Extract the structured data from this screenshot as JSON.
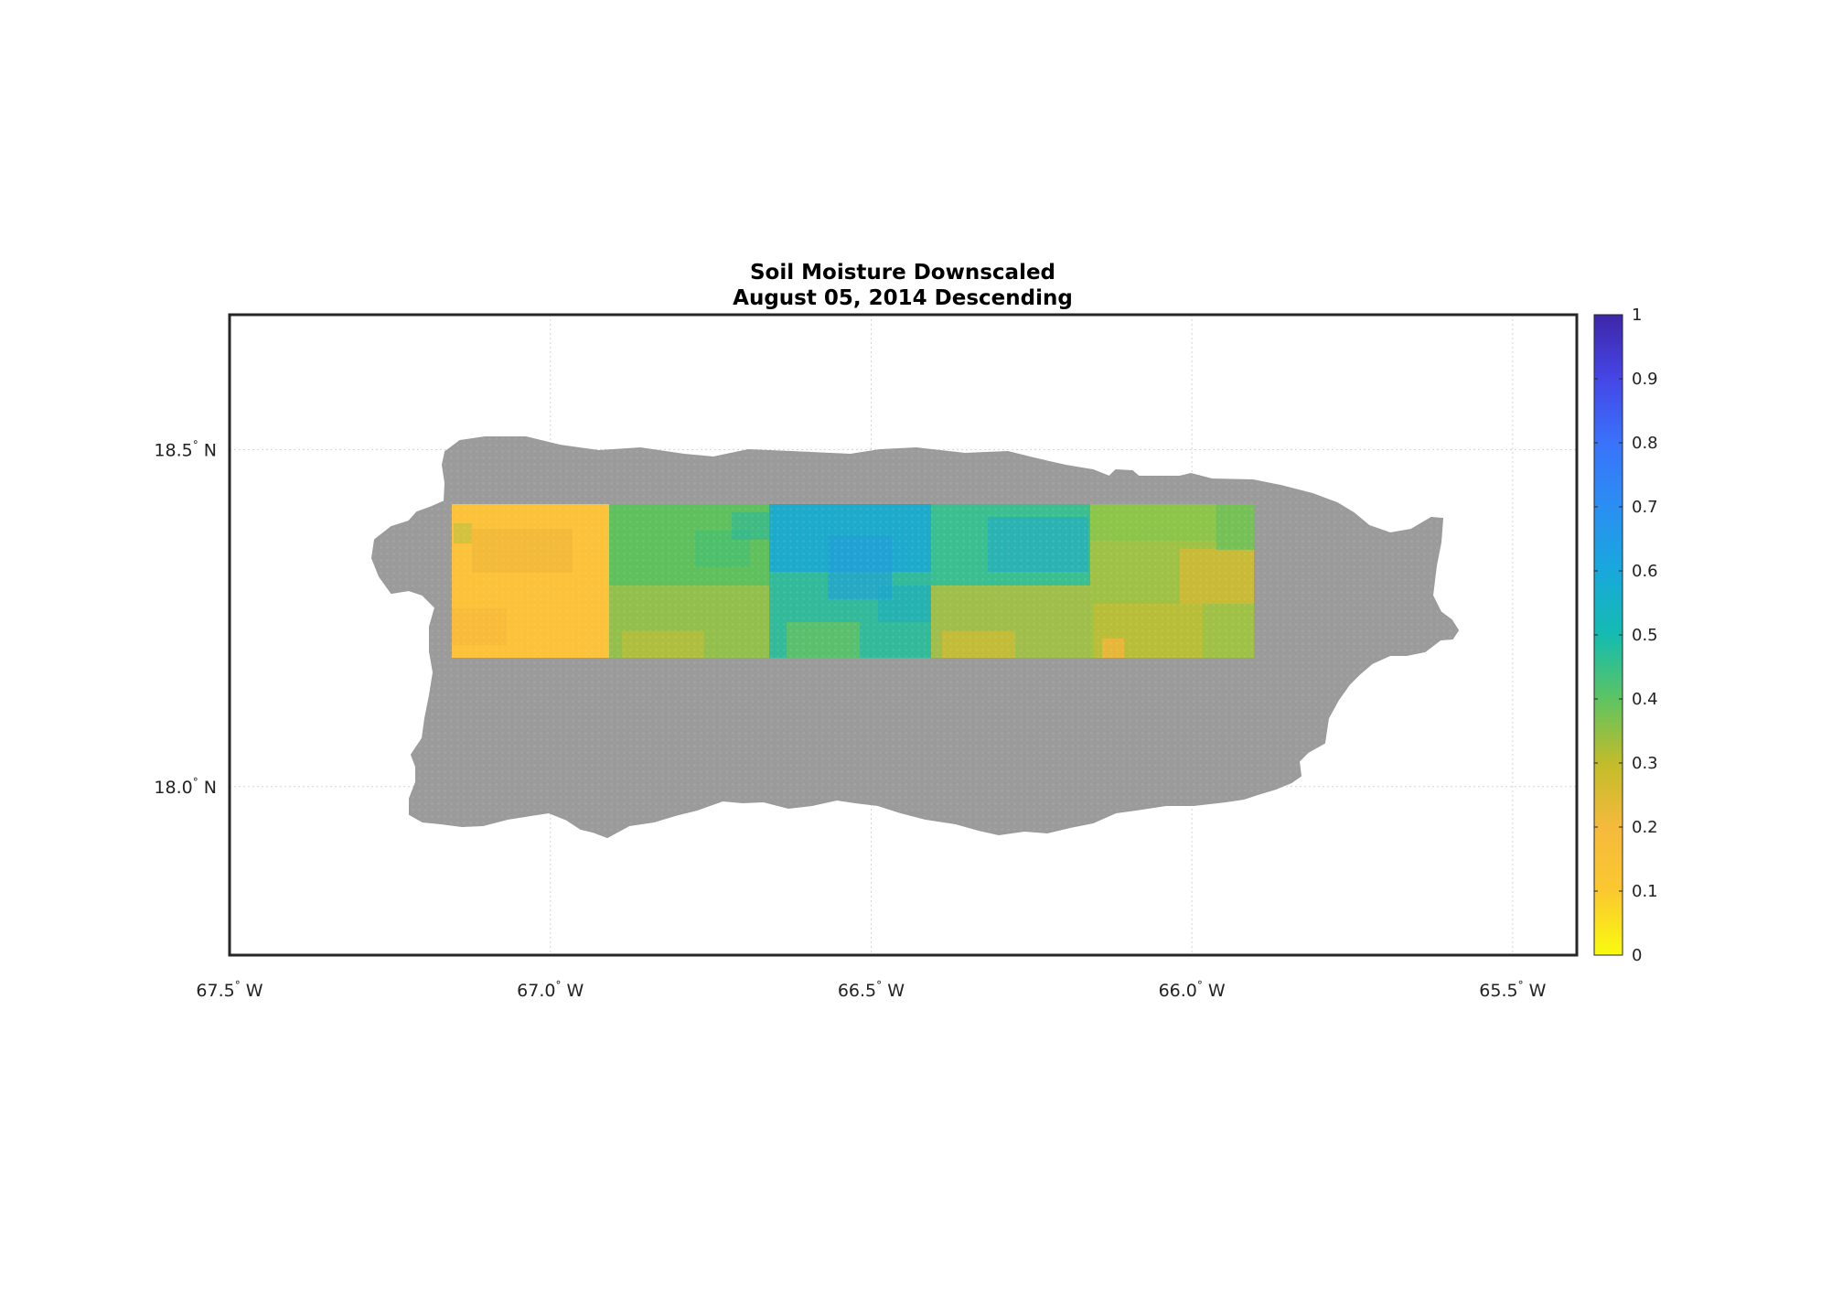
{
  "title": {
    "line1": "Soil Moisture Downscaled",
    "line2": "August 05, 2014 Descending"
  },
  "map": {
    "x_ticks": [
      {
        "value": -67.5,
        "label": "67.5",
        "suffix": " W"
      },
      {
        "value": -67.0,
        "label": "67.0",
        "suffix": " W"
      },
      {
        "value": -66.5,
        "label": "66.5",
        "suffix": " W"
      },
      {
        "value": -66.0,
        "label": "66.0",
        "suffix": " W"
      },
      {
        "value": -65.5,
        "label": "65.5",
        "suffix": " W"
      }
    ],
    "y_ticks": [
      {
        "value": 18.5,
        "label": "18.5",
        "suffix": " N"
      },
      {
        "value": 18.0,
        "label": "18.0",
        "suffix": " N"
      }
    ],
    "lon_range": [
      -67.5,
      -65.4
    ],
    "lat_range": [
      17.75,
      18.7
    ],
    "grid": true,
    "land_color": "#9b9b9b",
    "data_extent": {
      "lon": [
        -67.15,
        -65.9
      ],
      "lat": [
        18.19,
        18.42
      ]
    },
    "tiles": [
      {
        "lon": [
          -67.15,
          -66.905
        ],
        "mean": 0.18
      },
      {
        "lon": [
          -66.905,
          -66.655
        ],
        "mean": 0.36
      },
      {
        "lon": [
          -66.655,
          -66.405
        ],
        "mean": 0.48
      },
      {
        "lon": [
          -66.405,
          -66.155
        ],
        "mean": 0.4
      },
      {
        "lon": [
          -66.155,
          -65.9
        ],
        "mean": 0.3
      }
    ]
  },
  "colorbar": {
    "min": 0,
    "max": 1,
    "ticks": [
      "0",
      "0.1",
      "0.2",
      "0.3",
      "0.4",
      "0.5",
      "0.6",
      "0.7",
      "0.8",
      "0.9",
      "1"
    ],
    "colors": [
      "#f9fb0e",
      "#fbc830",
      "#d8b92a",
      "#8ec840",
      "#3fbf76",
      "#0fbcbc",
      "#17a8dd",
      "#2e8df5",
      "#3f6ffb",
      "#4445e8",
      "#3e26a8"
    ]
  }
}
